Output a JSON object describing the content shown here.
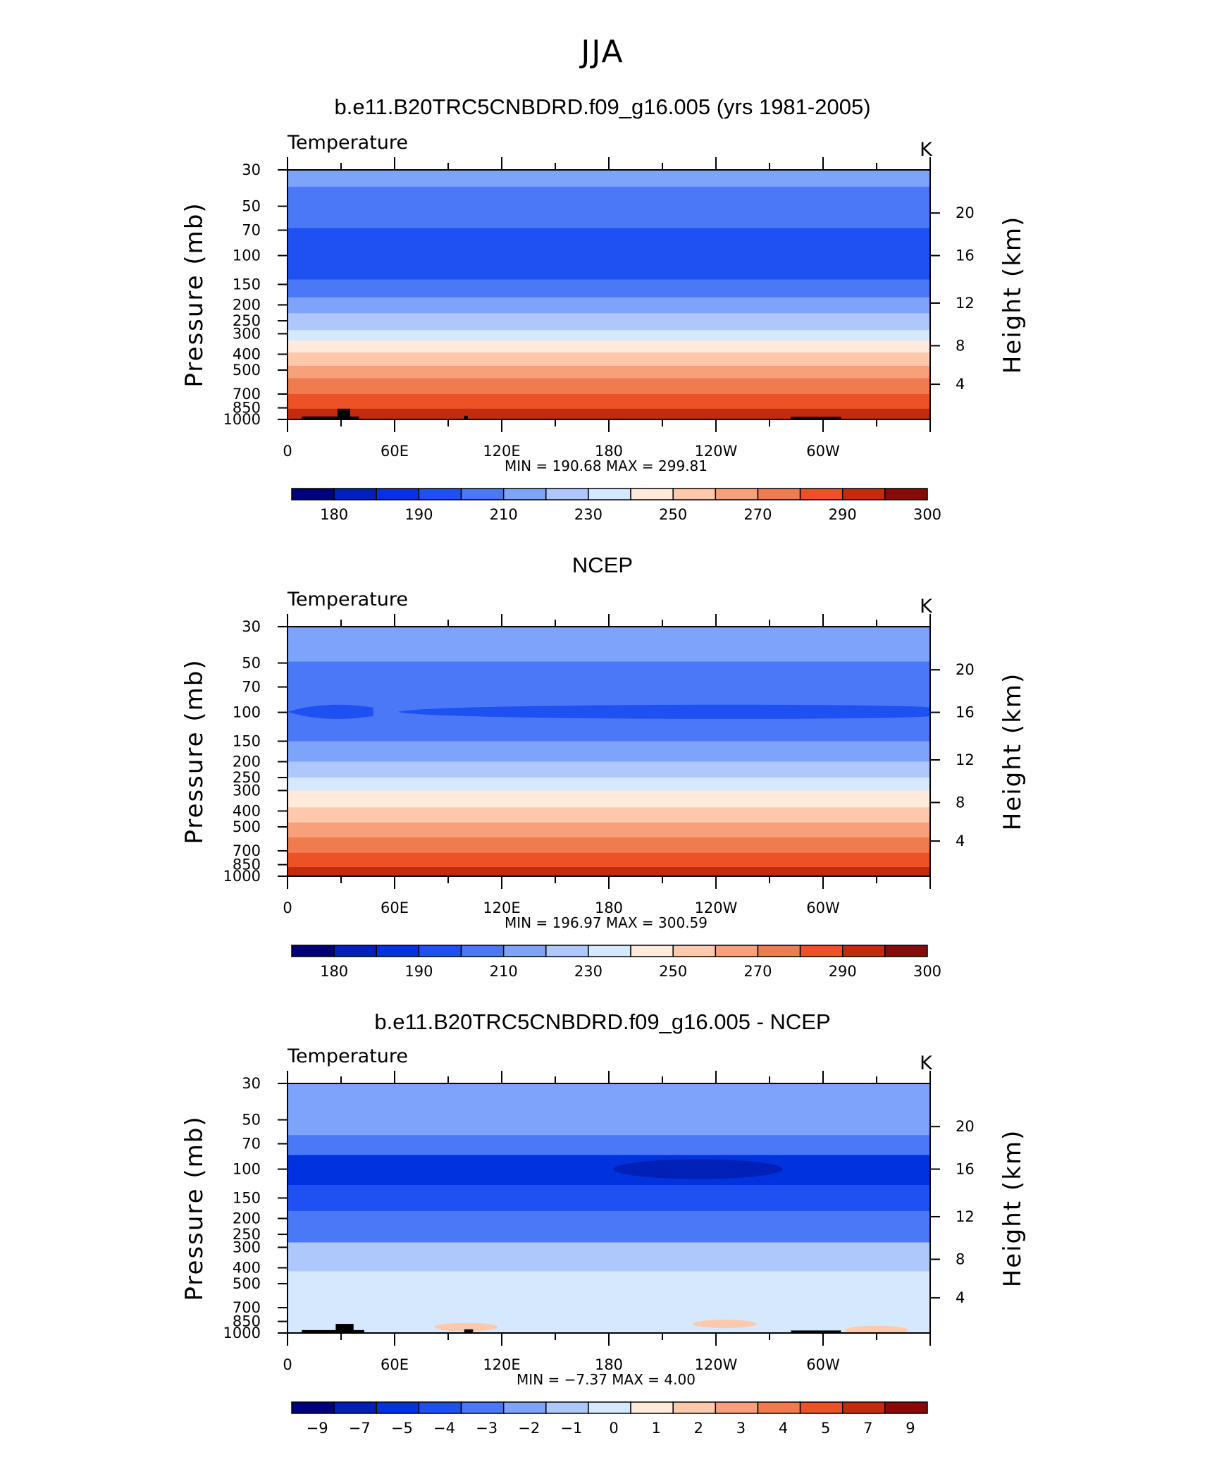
{
  "figure_title": "JJA",
  "x_ticks": [
    "0",
    "60E",
    "120E",
    "180",
    "120W",
    "60W"
  ],
  "pressure_ticks": [
    "30",
    "50",
    "70",
    "100",
    "150",
    "200",
    "250",
    "300",
    "400",
    "500",
    "700",
    "850",
    "1000"
  ],
  "height_ticks": [
    "20",
    "16",
    "12",
    "8",
    "4"
  ],
  "left_axis_label": "Pressure (mb)",
  "right_axis_label": "Height (km)",
  "variable_label": "Temperature",
  "units_label": "K",
  "panels": [
    {
      "title": "b.e11.B20TRC5CNBDRD.f09_g16.005 (yrs 1981-2005)",
      "stats": "MIN =  190.68   MAX =  299.81",
      "colorbar_labels": [
        "180",
        "190",
        "210",
        "230",
        "250",
        "270",
        "290",
        "300"
      ]
    },
    {
      "title": "NCEP",
      "stats": "MIN =  196.97   MAX =  300.59",
      "colorbar_labels": [
        "180",
        "190",
        "210",
        "230",
        "250",
        "270",
        "290",
        "300"
      ]
    },
    {
      "title": "b.e11.B20TRC5CNBDRD.f09_g16.005 - NCEP",
      "stats": "MIN =   −7.37   MAX =    4.00",
      "colorbar_labels": [
        "−9",
        "−7",
        "−5",
        "−4",
        "−3",
        "−2",
        "−1",
        "0",
        "1",
        "2",
        "3",
        "4",
        "5",
        "7",
        "9"
      ]
    }
  ],
  "colors": {
    "scale": [
      "#00007f",
      "#0020b8",
      "#0033dd",
      "#1e50f2",
      "#4a78f6",
      "#7ea3fa",
      "#aec8fc",
      "#d6e8fe",
      "#ffeadb",
      "#fdc9ad",
      "#f8a07a",
      "#f07b4e",
      "#ec5225",
      "#c42a0c",
      "#8a0a0a"
    ],
    "topography": "#000000"
  },
  "chart_data": [
    {
      "type": "heatmap",
      "title": "b.e11.B20TRC5CNBDRD.f09_g16.005 (yrs 1981-2005)",
      "variable": "Temperature",
      "units": "K",
      "xlabel": "",
      "ylabel": "Pressure (mb)",
      "ylabel_right": "Height (km)",
      "xlim": [
        0,
        360
      ],
      "x_ticks": [
        "0",
        "60E",
        "120E",
        "180",
        "120W",
        "60W"
      ],
      "ylim": [
        1000,
        30
      ],
      "y_scale": "log",
      "levels": [
        175,
        180,
        185,
        190,
        200,
        210,
        220,
        230,
        240,
        250,
        260,
        270,
        280,
        290,
        295,
        300
      ],
      "colorbar_labels": [
        "180",
        "190",
        "210",
        "230",
        "250",
        "270",
        "290",
        "300"
      ],
      "min": 190.68,
      "max": 299.81,
      "bands_by_pressure": [
        {
          "p_top": 30,
          "p_bottom": 38,
          "T": 215
        },
        {
          "p_top": 38,
          "p_bottom": 68,
          "T": 205
        },
        {
          "p_top": 68,
          "p_bottom": 140,
          "T": 195
        },
        {
          "p_top": 140,
          "p_bottom": 180,
          "T": 205
        },
        {
          "p_top": 180,
          "p_bottom": 225,
          "T": 215
        },
        {
          "p_top": 225,
          "p_bottom": 285,
          "T": 225
        },
        {
          "p_top": 285,
          "p_bottom": 330,
          "T": 235
        },
        {
          "p_top": 330,
          "p_bottom": 390,
          "T": 245
        },
        {
          "p_top": 390,
          "p_bottom": 470,
          "T": 255
        },
        {
          "p_top": 470,
          "p_bottom": 560,
          "T": 265
        },
        {
          "p_top": 560,
          "p_bottom": 700,
          "T": 275
        },
        {
          "p_top": 700,
          "p_bottom": 860,
          "T": 285
        },
        {
          "p_top": 860,
          "p_bottom": 1000,
          "T": 292
        }
      ],
      "topography": [
        {
          "lon_start": 8,
          "lon_end": 40,
          "p_top": 960
        },
        {
          "lon_start": 28,
          "lon_end": 35,
          "p_top": 860
        },
        {
          "lon_start": 99,
          "lon_end": 101,
          "p_top": 950
        },
        {
          "lon_start": 282,
          "lon_end": 310,
          "p_top": 965
        }
      ]
    },
    {
      "type": "heatmap",
      "title": "NCEP",
      "variable": "Temperature",
      "units": "K",
      "xlabel": "",
      "ylabel": "Pressure (mb)",
      "ylabel_right": "Height (km)",
      "xlim": [
        0,
        360
      ],
      "x_ticks": [
        "0",
        "60E",
        "120E",
        "180",
        "120W",
        "60W"
      ],
      "ylim": [
        1000,
        30
      ],
      "y_scale": "log",
      "levels": [
        175,
        180,
        185,
        190,
        200,
        210,
        220,
        230,
        240,
        250,
        260,
        270,
        280,
        290,
        295,
        300
      ],
      "colorbar_labels": [
        "180",
        "190",
        "210",
        "230",
        "250",
        "270",
        "290",
        "300"
      ],
      "min": 196.97,
      "max": 300.59,
      "bands_by_pressure": [
        {
          "p_top": 30,
          "p_bottom": 49,
          "T": 215
        },
        {
          "p_top": 49,
          "p_bottom": 150,
          "T": 205
        },
        {
          "p_top": 150,
          "p_bottom": 200,
          "T": 215
        },
        {
          "p_top": 200,
          "p_bottom": 250,
          "T": 225
        },
        {
          "p_top": 250,
          "p_bottom": 300,
          "T": 235
        },
        {
          "p_top": 300,
          "p_bottom": 380,
          "T": 245
        },
        {
          "p_top": 380,
          "p_bottom": 470,
          "T": 255
        },
        {
          "p_top": 470,
          "p_bottom": 580,
          "T": 265
        },
        {
          "p_top": 580,
          "p_bottom": 720,
          "T": 275
        },
        {
          "p_top": 720,
          "p_bottom": 880,
          "T": 285
        },
        {
          "p_top": 880,
          "p_bottom": 1000,
          "T": 292
        }
      ],
      "cold_tropopause_region": {
        "T": 195,
        "p_range": [
          88,
          112
        ],
        "lon_ranges": [
          [
            0,
            48
          ],
          [
            62,
            360
          ]
        ]
      }
    },
    {
      "type": "heatmap",
      "title": "b.e11.B20TRC5CNBDRD.f09_g16.005 - NCEP",
      "variable": "Temperature",
      "units": "K",
      "xlabel": "",
      "ylabel": "Pressure (mb)",
      "ylabel_right": "Height (km)",
      "xlim": [
        0,
        360
      ],
      "x_ticks": [
        "0",
        "60E",
        "120E",
        "180",
        "120W",
        "60W"
      ],
      "ylim": [
        1000,
        30
      ],
      "y_scale": "log",
      "levels": [
        -10,
        -9,
        -7,
        -5,
        -4,
        -3,
        -2,
        -1,
        0,
        1,
        2,
        3,
        4,
        5,
        7,
        9,
        10
      ],
      "colorbar_labels": [
        "−9",
        "−7",
        "−5",
        "−4",
        "−3",
        "−2",
        "−1",
        "0",
        "1",
        "2",
        "3",
        "4",
        "5",
        "7",
        "9"
      ],
      "min": -7.37,
      "max": 4.0,
      "bands_by_pressure": [
        {
          "p_top": 30,
          "p_bottom": 38,
          "dT": -2.5
        },
        {
          "p_top": 38,
          "p_bottom": 62,
          "dT": -2.5
        },
        {
          "p_top": 62,
          "p_bottom": 82,
          "dT": -3.5
        },
        {
          "p_top": 82,
          "p_bottom": 125,
          "dT": -6
        },
        {
          "p_top": 125,
          "p_bottom": 180,
          "dT": -4.5
        },
        {
          "p_top": 180,
          "p_bottom": 280,
          "dT": -3.5
        },
        {
          "p_top": 280,
          "p_bottom": 420,
          "dT": -1.5
        },
        {
          "p_top": 420,
          "p_bottom": 1000,
          "dT": -0.5
        }
      ],
      "local_features": [
        {
          "dT": -7.37,
          "lon": 230,
          "p": 100
        },
        {
          "dT": 1.5,
          "lon": 245,
          "p": 880
        },
        {
          "dT": 1.5,
          "lon": 100,
          "p": 920
        },
        {
          "dT": 1.5,
          "lon": 330,
          "p": 960
        }
      ],
      "topography": [
        {
          "lon_start": 8,
          "lon_end": 43,
          "p_top": 960
        },
        {
          "lon_start": 27,
          "lon_end": 37,
          "p_top": 880
        },
        {
          "lon_start": 99,
          "lon_end": 104,
          "p_top": 950
        },
        {
          "lon_start": 282,
          "lon_end": 310,
          "p_top": 965
        }
      ]
    }
  ]
}
